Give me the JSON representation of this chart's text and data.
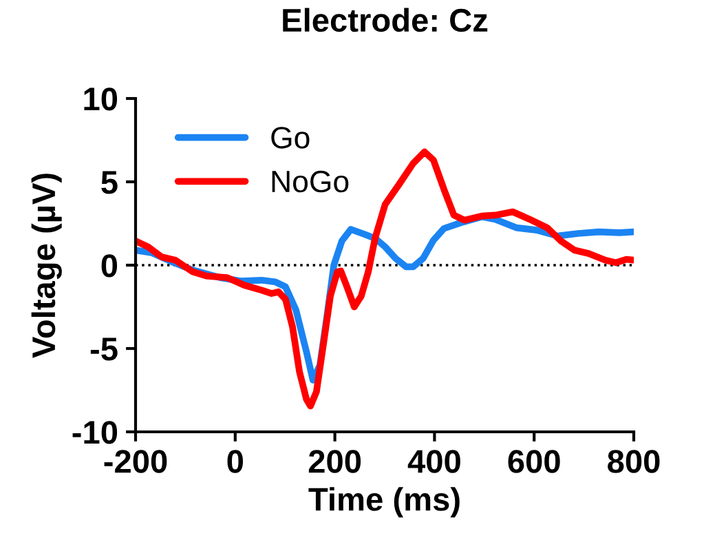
{
  "chart_data": {
    "type": "line",
    "title": "Electrode: Cz",
    "xlabel": "Time (ms)",
    "ylabel": "Voltage (µV)",
    "xlim": [
      -200,
      800
    ],
    "xticks": [
      -200,
      0,
      200,
      400,
      600,
      800
    ],
    "ylim": [
      -10,
      10
    ],
    "yticks": [
      -10,
      -5,
      0,
      5,
      10
    ],
    "grid": false,
    "legend": "top left",
    "marker": "none",
    "line_style": "solid",
    "ref_lines": [
      {
        "axis": "y",
        "value": 0,
        "color": "#000000",
        "line_style": "dotted"
      }
    ],
    "series": [
      {
        "name": "Go",
        "color": "#1b84f2",
        "x": [
          -200,
          -168,
          -127,
          -85,
          -30,
          11,
          53,
          80,
          101,
          122,
          143,
          156,
          170,
          184,
          198,
          214,
          232,
          260,
          281,
          301,
          322,
          343,
          357,
          377,
          398,
          419,
          453,
          495,
          522,
          564,
          605,
          647,
          688,
          730,
          771,
          800
        ],
        "values": [
          0.9,
          0.75,
          0.2,
          -0.3,
          -0.75,
          -0.95,
          -0.9,
          -1.0,
          -1.3,
          -2.7,
          -5.2,
          -6.9,
          -6.0,
          -3.1,
          0,
          1.45,
          2.15,
          1.85,
          1.6,
          1.1,
          0.4,
          -0.1,
          -0.1,
          0.4,
          1.5,
          2.2,
          2.55,
          2.9,
          2.75,
          2.25,
          2.1,
          1.75,
          1.9,
          2.0,
          1.95,
          2.0
        ]
      },
      {
        "name": "NoGo",
        "color": "#ff0000",
        "x": [
          -200,
          -175,
          -148,
          -120,
          -85,
          -58,
          -16,
          18,
          53,
          73,
          87,
          101,
          115,
          129,
          143,
          151,
          163,
          177,
          191,
          205,
          212,
          225,
          239,
          253,
          267,
          281,
          301,
          329,
          357,
          380,
          398,
          419,
          439,
          460,
          495,
          522,
          557,
          591,
          626,
          654,
          681,
          709,
          743,
          764,
          785,
          800
        ],
        "values": [
          1.45,
          1.1,
          0.5,
          0.3,
          -0.4,
          -0.65,
          -0.75,
          -1.2,
          -1.5,
          -1.7,
          -1.6,
          -2.05,
          -3.7,
          -6.4,
          -8.05,
          -8.45,
          -7.6,
          -4.75,
          -1.85,
          -0.4,
          -0.35,
          -1.35,
          -2.5,
          -1.85,
          -0.4,
          1.65,
          3.65,
          4.85,
          6.1,
          6.8,
          6.3,
          4.55,
          3.0,
          2.7,
          2.95,
          3.0,
          3.2,
          2.75,
          2.25,
          1.45,
          0.9,
          0.7,
          0.3,
          0.15,
          0.35,
          0.3
        ]
      }
    ]
  }
}
